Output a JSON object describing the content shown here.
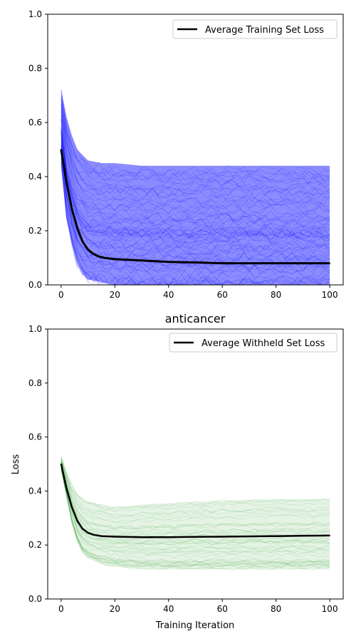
{
  "chart_data": [
    {
      "type": "line",
      "title": "",
      "xlabel": "",
      "ylabel": "",
      "xlim": [
        -5,
        105
      ],
      "ylim": [
        0.0,
        1.0
      ],
      "x_ticks": [
        "0",
        "20",
        "40",
        "60",
        "80",
        "100"
      ],
      "y_ticks": [
        "0.0",
        "0.2",
        "0.4",
        "0.6",
        "0.8",
        "1.0"
      ],
      "grid": false,
      "legend_position": "top-right",
      "series": [
        {
          "name": "Average Training Set Loss",
          "color": "#000000",
          "x": [
            0,
            2,
            4,
            6,
            8,
            10,
            12,
            14,
            16,
            20,
            30,
            40,
            50,
            60,
            70,
            80,
            90,
            100
          ],
          "values": [
            0.5,
            0.38,
            0.28,
            0.21,
            0.16,
            0.13,
            0.115,
            0.105,
            0.1,
            0.095,
            0.09,
            0.085,
            0.083,
            0.08,
            0.08,
            0.08,
            0.08,
            0.08
          ]
        }
      ],
      "individual_runs_color": "#0000ff",
      "individual_runs_band": {
        "x": [
          0,
          2,
          4,
          6,
          8,
          10,
          15,
          20,
          30,
          50,
          75,
          100
        ],
        "lower": [
          0.45,
          0.25,
          0.15,
          0.08,
          0.04,
          0.02,
          0.01,
          0.0,
          0.0,
          0.0,
          0.0,
          0.0
        ],
        "upper": [
          0.72,
          0.62,
          0.55,
          0.5,
          0.48,
          0.46,
          0.45,
          0.45,
          0.44,
          0.44,
          0.44,
          0.44
        ]
      }
    },
    {
      "type": "line",
      "title": "anticancer",
      "xlabel": "Training Iteration",
      "ylabel": "Loss",
      "xlim": [
        -5,
        105
      ],
      "ylim": [
        0.0,
        1.0
      ],
      "x_ticks": [
        "0",
        "20",
        "40",
        "60",
        "80",
        "100"
      ],
      "y_ticks": [
        "0.0",
        "0.2",
        "0.4",
        "0.6",
        "0.8",
        "1.0"
      ],
      "grid": false,
      "legend_position": "top-right",
      "series": [
        {
          "name": "Average Withheld Set Loss",
          "color": "#000000",
          "x": [
            0,
            2,
            4,
            6,
            8,
            10,
            12,
            15,
            20,
            30,
            40,
            50,
            60,
            70,
            80,
            90,
            100
          ],
          "values": [
            0.5,
            0.41,
            0.34,
            0.29,
            0.26,
            0.245,
            0.238,
            0.233,
            0.231,
            0.229,
            0.229,
            0.23,
            0.231,
            0.232,
            0.233,
            0.234,
            0.235
          ]
        }
      ],
      "individual_runs_color": "#2ca02c",
      "individual_runs_band": {
        "x": [
          0,
          2,
          4,
          6,
          8,
          10,
          15,
          20,
          30,
          50,
          75,
          100
        ],
        "lower": [
          0.48,
          0.38,
          0.28,
          0.21,
          0.17,
          0.15,
          0.13,
          0.12,
          0.11,
          0.11,
          0.11,
          0.11
        ],
        "upper": [
          0.53,
          0.47,
          0.42,
          0.39,
          0.37,
          0.36,
          0.35,
          0.34,
          0.35,
          0.36,
          0.37,
          0.37
        ]
      }
    }
  ]
}
